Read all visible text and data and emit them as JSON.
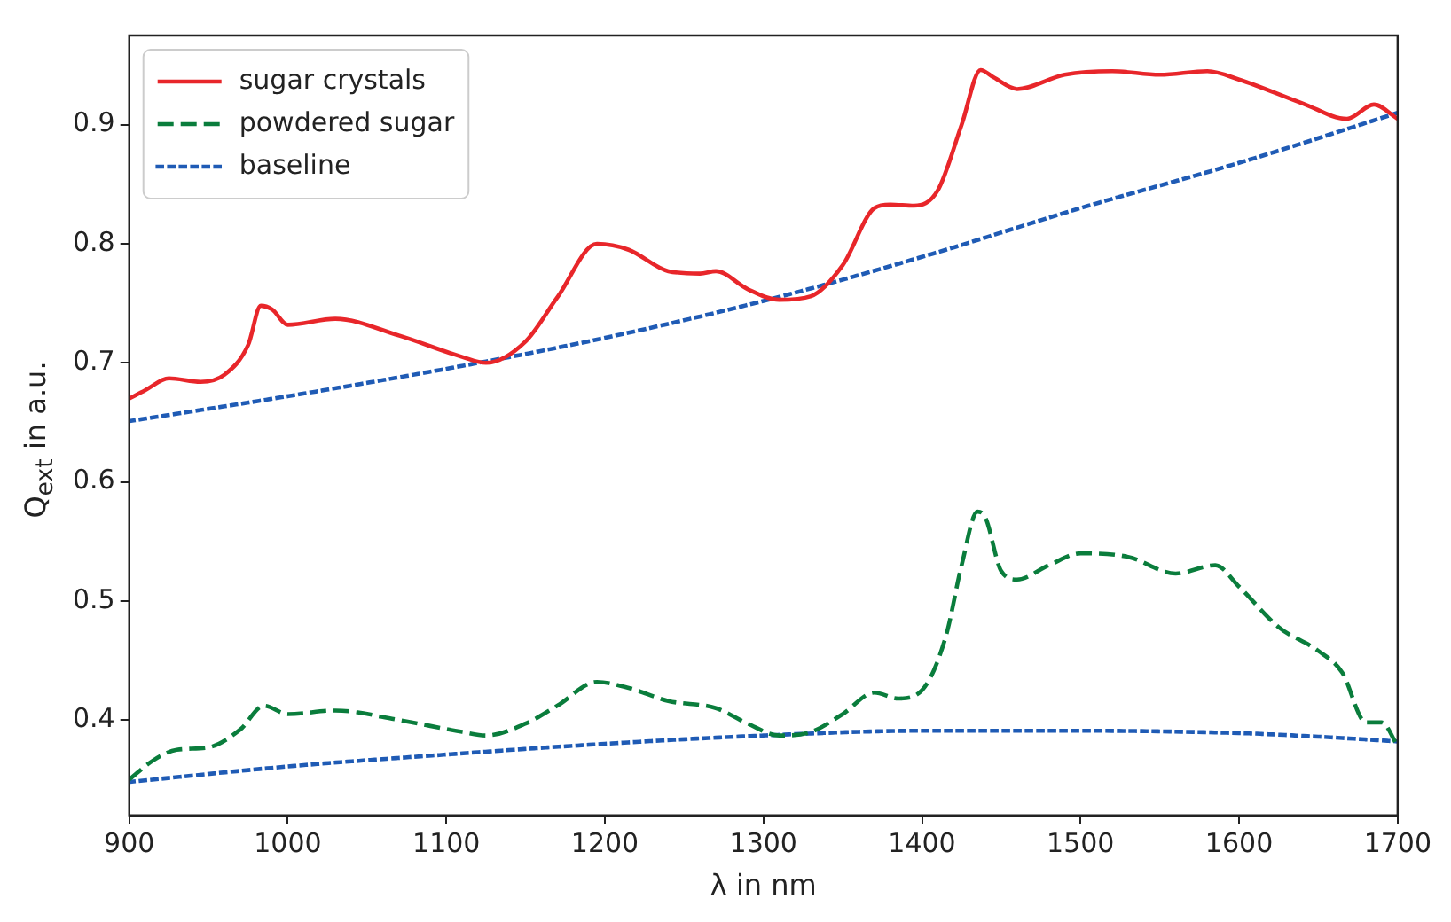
{
  "chart_data": {
    "type": "line",
    "xlabel": "λ in nm",
    "ylabel": "Q$_{ext}$ in a.u.",
    "xlim": [
      900,
      1700
    ],
    "xticks": [
      900,
      1000,
      1100,
      1200,
      1300,
      1400,
      1500,
      1600,
      1700
    ],
    "ylim": [
      0.32,
      0.975
    ],
    "yticks": [
      0.4,
      0.5,
      0.6,
      0.7,
      0.8,
      0.9
    ],
    "grid": false,
    "legend": "top left",
    "marker": "none",
    "series": [
      {
        "name": "sugar crystals",
        "color": "#e8262a",
        "line_style": "solid",
        "x": [
          900,
          910,
          925,
          945,
          960,
          975,
          983,
          990,
          1000,
          1030,
          1070,
          1110,
          1125,
          1150,
          1170,
          1195,
          1215,
          1240,
          1260,
          1270,
          1290,
          1310,
          1330,
          1350,
          1370,
          1380,
          1395,
          1410,
          1425,
          1437,
          1445,
          1460,
          1490,
          1520,
          1550,
          1580,
          1600,
          1640,
          1668,
          1685,
          1700
        ],
        "values": [
          0.67,
          0.677,
          0.687,
          0.684,
          0.69,
          0.715,
          0.748,
          0.745,
          0.732,
          0.737,
          0.723,
          0.705,
          0.7,
          0.718,
          0.755,
          0.8,
          0.795,
          0.777,
          0.775,
          0.777,
          0.762,
          0.753,
          0.756,
          0.782,
          0.83,
          0.833,
          0.832,
          0.845,
          0.9,
          0.946,
          0.94,
          0.93,
          0.942,
          0.945,
          0.942,
          0.945,
          0.938,
          0.918,
          0.905,
          0.917,
          0.905
        ]
      },
      {
        "name": "powdered sugar",
        "color": "#0a7d3c",
        "line_style": "dashed",
        "x": [
          900,
          915,
          930,
          950,
          970,
          985,
          1000,
          1030,
          1070,
          1110,
          1125,
          1150,
          1170,
          1195,
          1215,
          1240,
          1270,
          1290,
          1310,
          1330,
          1350,
          1370,
          1385,
          1400,
          1415,
          1425,
          1435,
          1440,
          1450,
          1460,
          1480,
          1500,
          1530,
          1560,
          1585,
          1600,
          1625,
          1650,
          1665,
          1680,
          1690,
          1700
        ],
        "values": [
          0.35,
          0.366,
          0.375,
          0.377,
          0.392,
          0.412,
          0.405,
          0.408,
          0.4,
          0.39,
          0.387,
          0.397,
          0.412,
          0.432,
          0.427,
          0.416,
          0.41,
          0.397,
          0.387,
          0.39,
          0.405,
          0.423,
          0.418,
          0.425,
          0.47,
          0.53,
          0.575,
          0.57,
          0.525,
          0.518,
          0.53,
          0.54,
          0.537,
          0.523,
          0.53,
          0.512,
          0.478,
          0.458,
          0.44,
          0.398,
          0.398,
          0.378
        ]
      },
      {
        "name": "baseline",
        "color": "#1f5bb5",
        "line_style": "dotted",
        "x": [
          900,
          1000,
          1100,
          1200,
          1300,
          1400,
          1500,
          1600,
          1700
        ],
        "values": [
          0.651,
          0.672,
          0.695,
          0.721,
          0.752,
          0.789,
          0.83,
          0.868,
          0.91
        ]
      },
      {
        "color": "#1f5bb5",
        "line_style": "dotted",
        "x": [
          900,
          1000,
          1100,
          1200,
          1300,
          1400,
          1500,
          1600,
          1650,
          1700
        ],
        "values": [
          0.348,
          0.361,
          0.371,
          0.38,
          0.387,
          0.391,
          0.391,
          0.389,
          0.386,
          0.382
        ]
      }
    ]
  }
}
